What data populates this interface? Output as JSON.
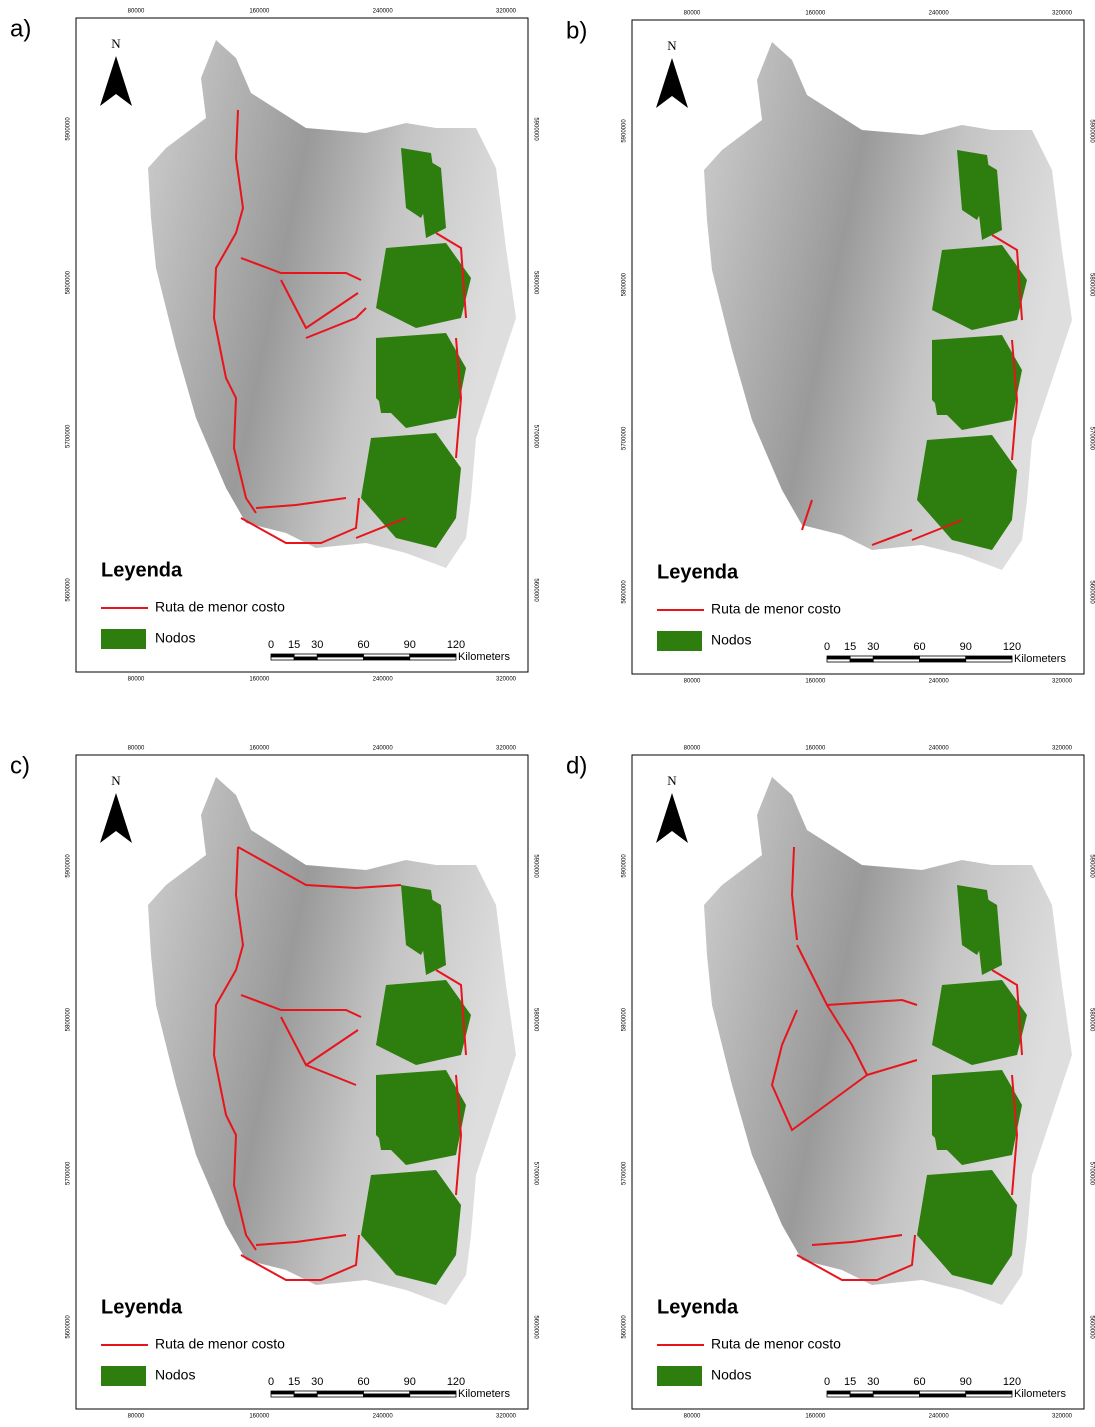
{
  "panels": [
    {
      "label": "a)"
    },
    {
      "label": "b)"
    },
    {
      "label": "c)"
    },
    {
      "label": "d)"
    }
  ],
  "map_frame": {
    "x_ticks": [
      80000,
      160000,
      240000,
      320000
    ],
    "y_ticks": [
      5600000,
      5700000,
      5800000,
      5900000
    ],
    "north": "N",
    "legend": {
      "title": "Leyenda",
      "route": "Ruta de menor costo",
      "nodes": "Nodos"
    },
    "scale_bar": {
      "ticks": [
        0,
        15,
        30,
        60,
        90,
        120
      ],
      "unit": "Kilometers"
    }
  }
}
